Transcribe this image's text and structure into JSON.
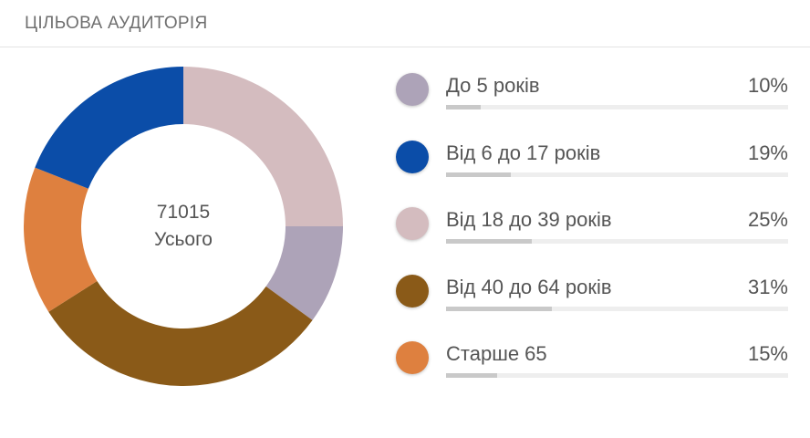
{
  "header": {
    "title": "ЦІЛЬОВА АУДИТОРІЯ"
  },
  "center": {
    "total": "71015",
    "label": "Усього"
  },
  "chart_data": {
    "type": "pie",
    "categories": [
      "До 5 років",
      "Від 6 до 17 років",
      "Від 18 до 39 років",
      "Від 40 до 64 років",
      "Старше 65"
    ],
    "values": [
      10,
      19,
      25,
      31,
      15
    ],
    "value_labels": [
      "10%",
      "19%",
      "25%",
      "31%",
      "15%"
    ],
    "colors": [
      "#ada3b8",
      "#0b4da8",
      "#d4bcbf",
      "#8a5a18",
      "#de803f"
    ],
    "donut": true,
    "legend_position": "right"
  }
}
